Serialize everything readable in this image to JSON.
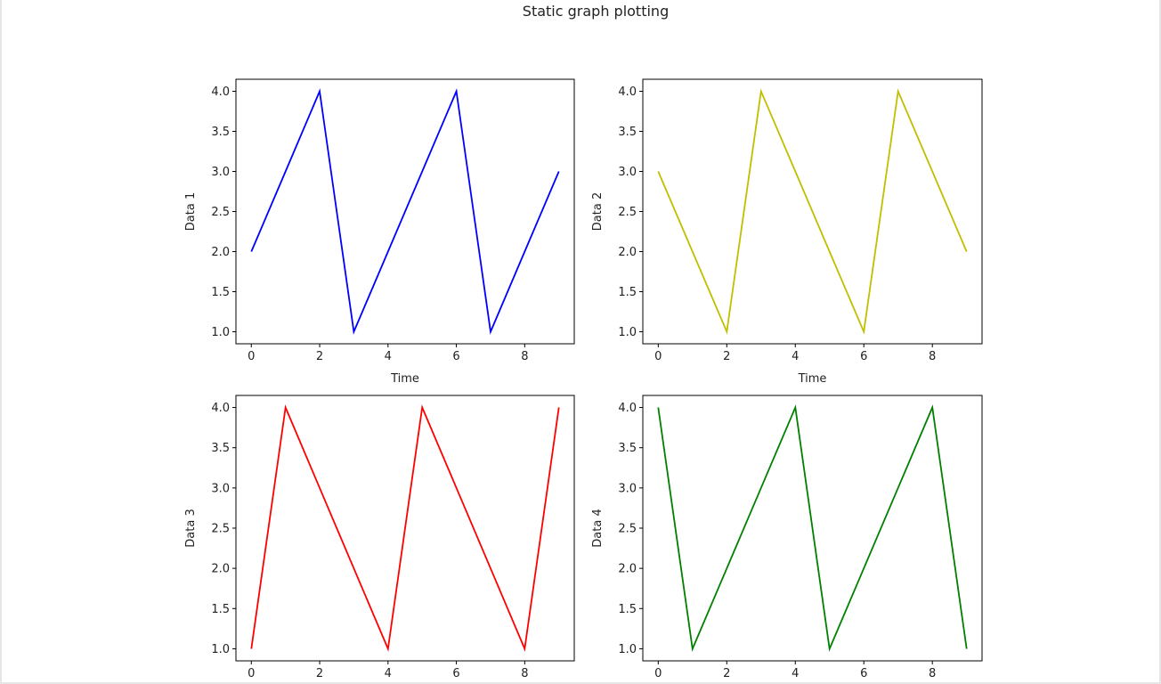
{
  "figure": {
    "title": "Static graph plotting"
  },
  "chart_data": [
    {
      "type": "line",
      "x": [
        0,
        1,
        2,
        3,
        4,
        5,
        6,
        7,
        8,
        9
      ],
      "series": [
        {
          "values": [
            2,
            3,
            4,
            1,
            2,
            3,
            4,
            1,
            2,
            3
          ],
          "color": "#0000ff"
        }
      ],
      "xlabel": "Time",
      "ylabel": "Data 1",
      "xlim": [
        -0.45,
        9.45
      ],
      "ylim": [
        0.85,
        4.15
      ],
      "xticks": [
        0,
        2,
        4,
        6,
        8
      ],
      "xtick_labels": [
        "0",
        "2",
        "4",
        "6",
        "8"
      ],
      "yticks": [
        1.0,
        1.5,
        2.0,
        2.5,
        3.0,
        3.5,
        4.0
      ],
      "ytick_labels": [
        "1.0",
        "1.5",
        "2.0",
        "2.5",
        "3.0",
        "3.5",
        "4.0"
      ],
      "grid": false
    },
    {
      "type": "line",
      "x": [
        0,
        1,
        2,
        3,
        4,
        5,
        6,
        7,
        8,
        9
      ],
      "series": [
        {
          "values": [
            3,
            2,
            1,
            4,
            3,
            2,
            1,
            4,
            3,
            2
          ],
          "color": "#bfbf00"
        }
      ],
      "xlabel": "Time",
      "ylabel": "Data 2",
      "xlim": [
        -0.45,
        9.45
      ],
      "ylim": [
        0.85,
        4.15
      ],
      "xticks": [
        0,
        2,
        4,
        6,
        8
      ],
      "xtick_labels": [
        "0",
        "2",
        "4",
        "6",
        "8"
      ],
      "yticks": [
        1.0,
        1.5,
        2.0,
        2.5,
        3.0,
        3.5,
        4.0
      ],
      "ytick_labels": [
        "1.0",
        "1.5",
        "2.0",
        "2.5",
        "3.0",
        "3.5",
        "4.0"
      ],
      "grid": false
    },
    {
      "type": "line",
      "x": [
        0,
        1,
        2,
        3,
        4,
        5,
        6,
        7,
        8,
        9
      ],
      "series": [
        {
          "values": [
            1,
            4,
            3,
            2,
            1,
            4,
            3,
            2,
            1,
            4
          ],
          "color": "#ff0000"
        }
      ],
      "xlabel": "",
      "ylabel": "Data 3",
      "xlim": [
        -0.45,
        9.45
      ],
      "ylim": [
        0.85,
        4.15
      ],
      "xticks": [
        0,
        2,
        4,
        6,
        8
      ],
      "xtick_labels": [
        "0",
        "2",
        "4",
        "6",
        "8"
      ],
      "yticks": [
        1.0,
        1.5,
        2.0,
        2.5,
        3.0,
        3.5,
        4.0
      ],
      "ytick_labels": [
        "1.0",
        "1.5",
        "2.0",
        "2.5",
        "3.0",
        "3.5",
        "4.0"
      ],
      "grid": false
    },
    {
      "type": "line",
      "x": [
        0,
        1,
        2,
        3,
        4,
        5,
        6,
        7,
        8,
        9
      ],
      "series": [
        {
          "values": [
            4,
            1,
            2,
            3,
            4,
            1,
            2,
            3,
            4,
            1
          ],
          "color": "#008000"
        }
      ],
      "xlabel": "",
      "ylabel": "Data 4",
      "xlim": [
        -0.45,
        9.45
      ],
      "ylim": [
        0.85,
        4.15
      ],
      "xticks": [
        0,
        2,
        4,
        6,
        8
      ],
      "xtick_labels": [
        "0",
        "2",
        "4",
        "6",
        "8"
      ],
      "yticks": [
        1.0,
        1.5,
        2.0,
        2.5,
        3.0,
        3.5,
        4.0
      ],
      "ytick_labels": [
        "1.0",
        "1.5",
        "2.0",
        "2.5",
        "3.0",
        "3.5",
        "4.0"
      ],
      "grid": false
    }
  ]
}
